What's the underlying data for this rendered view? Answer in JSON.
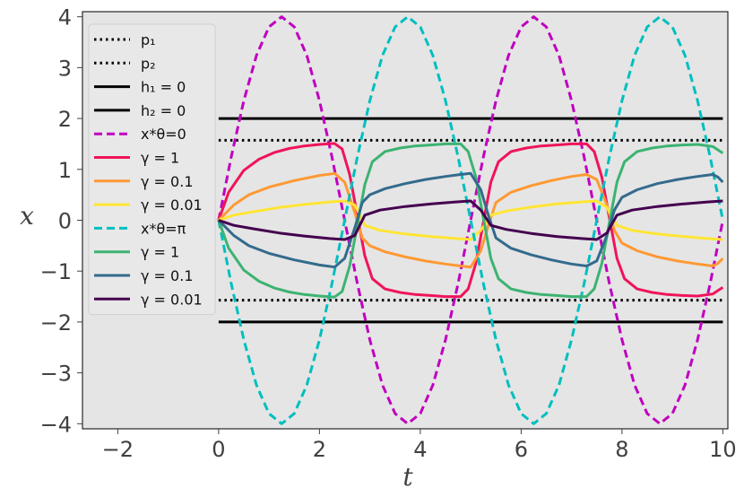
{
  "chart_data": {
    "type": "line",
    "xlabel": "t",
    "ylabel": "x",
    "xlim": [
      -2.7,
      10.1
    ],
    "ylim": [
      -4.1,
      4.1
    ],
    "xticks": [
      -2,
      0,
      2,
      4,
      6,
      8,
      10
    ],
    "yticks": [
      -4,
      -3,
      -2,
      -1,
      0,
      1,
      2,
      3,
      4
    ],
    "grid": false,
    "background": "#e5e5e5",
    "legend_position": "upper-left",
    "series": [
      {
        "name": "p₁",
        "style": "dotted",
        "color": "#000000",
        "x": [
          0,
          10
        ],
        "y": [
          1.5708,
          1.5708
        ]
      },
      {
        "name": "p₂",
        "style": "dotted",
        "color": "#000000",
        "x": [
          0,
          10
        ],
        "y": [
          -1.5708,
          -1.5708
        ]
      },
      {
        "name": "h₁ = 0",
        "style": "solid",
        "color": "#000000",
        "x": [
          0,
          10
        ],
        "y": [
          2,
          2
        ]
      },
      {
        "name": "h₂ = 0",
        "style": "solid",
        "color": "#000000",
        "x": [
          0,
          10
        ],
        "y": [
          -2,
          -2
        ]
      },
      {
        "name": "x*θ=0",
        "style": "dashed",
        "color": "#bf00bf",
        "x": [
          0,
          0.25,
          0.5,
          0.75,
          1.0,
          1.25,
          1.5,
          1.75,
          2.0,
          2.25,
          2.5,
          2.75,
          3.0,
          3.25,
          3.5,
          3.75,
          4.0,
          4.25,
          4.5,
          4.75,
          5.0,
          5.25,
          5.5,
          5.75,
          6.0,
          6.25,
          6.5,
          6.75,
          7.0,
          7.25,
          7.5,
          7.75,
          8.0,
          8.25,
          8.5,
          8.75,
          9.0,
          9.25,
          9.5,
          9.75,
          10.0
        ],
        "y": [
          0,
          1.24,
          2.35,
          3.24,
          3.8,
          4.0,
          3.8,
          3.24,
          2.35,
          1.24,
          0,
          -1.24,
          -2.35,
          -3.24,
          -3.8,
          -4.0,
          -3.8,
          -3.24,
          -2.35,
          -1.24,
          0,
          1.24,
          2.35,
          3.24,
          3.8,
          4.0,
          3.8,
          3.24,
          2.35,
          1.24,
          0,
          -1.24,
          -2.35,
          -3.24,
          -3.8,
          -4.0,
          -3.8,
          -3.24,
          -2.35,
          -1.24,
          0
        ]
      },
      {
        "name": "γ = 1",
        "style": "solid",
        "color": "#f0145a",
        "x": [
          0,
          0.2,
          0.5,
          0.8,
          1.1,
          1.4,
          1.7,
          2.0,
          2.3,
          2.45,
          2.6,
          2.75,
          2.9,
          3.05,
          3.3,
          3.6,
          3.9,
          4.2,
          4.5,
          4.8,
          4.95,
          5.1,
          5.25,
          5.4,
          5.55,
          5.8,
          6.1,
          6.4,
          6.7,
          7.0,
          7.3,
          7.45,
          7.6,
          7.75,
          7.9,
          8.05,
          8.3,
          8.6,
          8.9,
          9.2,
          9.5,
          9.8,
          9.95,
          10.0
        ],
        "y": [
          0,
          0.55,
          0.98,
          1.2,
          1.33,
          1.41,
          1.46,
          1.49,
          1.51,
          1.4,
          0.9,
          0.1,
          -0.7,
          -1.15,
          -1.35,
          -1.42,
          -1.46,
          -1.48,
          -1.5,
          -1.5,
          -1.35,
          -0.85,
          -0.05,
          0.75,
          1.15,
          1.35,
          1.42,
          1.46,
          1.48,
          1.5,
          1.5,
          1.35,
          0.85,
          0.05,
          -0.75,
          -1.15,
          -1.35,
          -1.42,
          -1.46,
          -1.48,
          -1.49,
          -1.45,
          -1.35,
          -1.32
        ]
      },
      {
        "name": "γ = 0.1",
        "style": "solid",
        "color": "#ff9933",
        "x": [
          0,
          0.3,
          0.6,
          1.0,
          1.5,
          2.0,
          2.3,
          2.5,
          2.7,
          2.85,
          3.0,
          3.3,
          3.7,
          4.1,
          4.5,
          4.8,
          5.0,
          5.2,
          5.35,
          5.5,
          5.8,
          6.2,
          6.6,
          7.0,
          7.3,
          7.5,
          7.7,
          7.85,
          8.0,
          8.3,
          8.7,
          9.1,
          9.5,
          9.8,
          9.9,
          10.0
        ],
        "y": [
          0,
          0.3,
          0.5,
          0.65,
          0.78,
          0.88,
          0.92,
          0.75,
          0.15,
          -0.35,
          -0.5,
          -0.62,
          -0.72,
          -0.8,
          -0.86,
          -0.9,
          -0.92,
          -0.6,
          -0.1,
          0.35,
          0.55,
          0.68,
          0.78,
          0.86,
          0.9,
          0.8,
          0.3,
          -0.2,
          -0.45,
          -0.6,
          -0.72,
          -0.8,
          -0.86,
          -0.9,
          -0.85,
          -0.75
        ]
      },
      {
        "name": "γ = 0.01",
        "style": "solid",
        "color": "#ffe534",
        "x": [
          0,
          0.3,
          0.7,
          1.2,
          1.7,
          2.2,
          2.5,
          2.7,
          2.9,
          3.2,
          3.7,
          4.2,
          4.7,
          5.0,
          5.2,
          5.4,
          5.7,
          6.2,
          6.7,
          7.2,
          7.5,
          7.7,
          7.9,
          8.2,
          8.7,
          9.2,
          9.7,
          10.0
        ],
        "y": [
          0,
          0.1,
          0.17,
          0.25,
          0.31,
          0.36,
          0.38,
          0.3,
          -0.1,
          -0.2,
          -0.27,
          -0.32,
          -0.36,
          -0.38,
          -0.2,
          0.1,
          0.18,
          0.26,
          0.32,
          0.36,
          0.38,
          0.25,
          -0.1,
          -0.2,
          -0.27,
          -0.32,
          -0.36,
          -0.38
        ]
      },
      {
        "name": "x*θ=π",
        "style": "dashed",
        "color": "#00bfbf",
        "x": [
          0,
          0.25,
          0.5,
          0.75,
          1.0,
          1.25,
          1.5,
          1.75,
          2.0,
          2.25,
          2.5,
          2.75,
          3.0,
          3.25,
          3.5,
          3.75,
          4.0,
          4.25,
          4.5,
          4.75,
          5.0,
          5.25,
          5.5,
          5.75,
          6.0,
          6.25,
          6.5,
          6.75,
          7.0,
          7.25,
          7.5,
          7.75,
          8.0,
          8.25,
          8.5,
          8.75,
          9.0,
          9.25,
          9.5,
          9.75,
          10.0
        ],
        "y": [
          0,
          -1.24,
          -2.35,
          -3.24,
          -3.8,
          -4.0,
          -3.8,
          -3.24,
          -2.35,
          -1.24,
          0,
          1.24,
          2.35,
          3.24,
          3.8,
          4.0,
          3.8,
          3.24,
          2.35,
          1.24,
          0,
          -1.24,
          -2.35,
          -3.24,
          -3.8,
          -4.0,
          -3.8,
          -3.24,
          -2.35,
          -1.24,
          0,
          1.24,
          2.35,
          3.24,
          3.8,
          4.0,
          3.8,
          3.24,
          2.35,
          1.24,
          0
        ]
      },
      {
        "name": "γ = 1",
        "style": "solid",
        "color": "#3cb371",
        "x": [
          0,
          0.2,
          0.5,
          0.8,
          1.1,
          1.4,
          1.7,
          2.0,
          2.3,
          2.45,
          2.6,
          2.75,
          2.9,
          3.05,
          3.3,
          3.6,
          3.9,
          4.2,
          4.5,
          4.8,
          4.95,
          5.1,
          5.25,
          5.4,
          5.55,
          5.8,
          6.1,
          6.4,
          6.7,
          7.0,
          7.3,
          7.45,
          7.6,
          7.75,
          7.9,
          8.05,
          8.3,
          8.6,
          8.9,
          9.2,
          9.5,
          9.8,
          9.95,
          10.0
        ],
        "y": [
          0,
          -0.55,
          -0.98,
          -1.2,
          -1.33,
          -1.41,
          -1.46,
          -1.49,
          -1.51,
          -1.4,
          -0.9,
          -0.1,
          0.7,
          1.15,
          1.35,
          1.42,
          1.46,
          1.48,
          1.5,
          1.5,
          1.35,
          0.85,
          0.05,
          -0.75,
          -1.15,
          -1.35,
          -1.42,
          -1.46,
          -1.48,
          -1.5,
          -1.5,
          -1.35,
          -0.85,
          -0.05,
          0.75,
          1.15,
          1.35,
          1.42,
          1.46,
          1.48,
          1.49,
          1.45,
          1.35,
          1.32
        ]
      },
      {
        "name": "γ = 0.1",
        "style": "solid",
        "color": "#336b8c",
        "x": [
          0,
          0.3,
          0.6,
          1.0,
          1.5,
          2.0,
          2.3,
          2.5,
          2.7,
          2.85,
          3.0,
          3.3,
          3.7,
          4.1,
          4.5,
          4.8,
          5.0,
          5.2,
          5.35,
          5.5,
          5.8,
          6.2,
          6.6,
          7.0,
          7.3,
          7.5,
          7.7,
          7.85,
          8.0,
          8.3,
          8.7,
          9.1,
          9.5,
          9.8,
          9.9,
          10.0
        ],
        "y": [
          0,
          -0.3,
          -0.5,
          -0.65,
          -0.78,
          -0.88,
          -0.92,
          -0.75,
          -0.15,
          0.35,
          0.5,
          0.62,
          0.72,
          0.8,
          0.86,
          0.9,
          0.92,
          0.6,
          0.1,
          -0.35,
          -0.55,
          -0.68,
          -0.78,
          -0.86,
          -0.9,
          -0.8,
          -0.3,
          0.2,
          0.45,
          0.6,
          0.72,
          0.8,
          0.86,
          0.9,
          0.85,
          0.75
        ]
      },
      {
        "name": "γ = 0.01",
        "style": "solid",
        "color": "#44004f",
        "x": [
          0,
          0.3,
          0.7,
          1.2,
          1.7,
          2.2,
          2.5,
          2.7,
          2.9,
          3.2,
          3.7,
          4.2,
          4.7,
          5.0,
          5.2,
          5.4,
          5.7,
          6.2,
          6.7,
          7.2,
          7.5,
          7.7,
          7.9,
          8.2,
          8.7,
          9.2,
          9.7,
          10.0
        ],
        "y": [
          0,
          -0.1,
          -0.17,
          -0.25,
          -0.31,
          -0.36,
          -0.38,
          -0.3,
          0.1,
          0.2,
          0.27,
          0.32,
          0.36,
          0.38,
          0.2,
          -0.1,
          -0.18,
          -0.26,
          -0.32,
          -0.36,
          -0.38,
          -0.25,
          0.1,
          0.2,
          0.27,
          0.32,
          0.36,
          0.38
        ]
      }
    ]
  }
}
